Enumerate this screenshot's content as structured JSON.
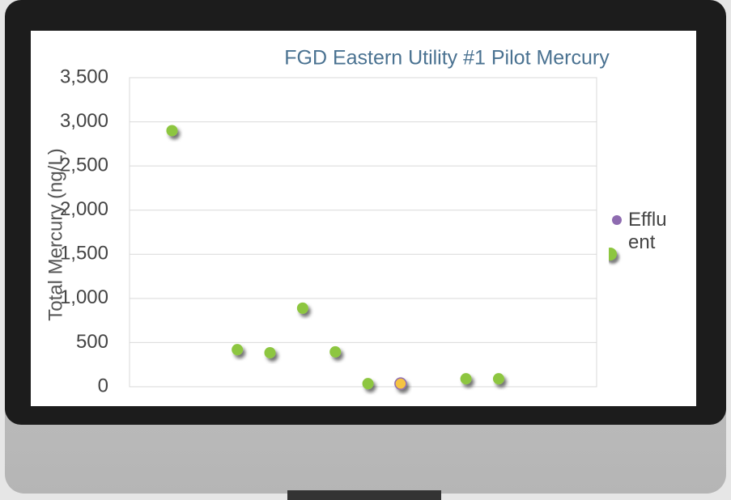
{
  "chart_data": {
    "type": "scatter",
    "title": "FGD Eastern Utility #1 Pilot Mercury",
    "y_label": "Total Mercury (ng/L)",
    "x": [
      1,
      3,
      4,
      5,
      6,
      7,
      8,
      10,
      11
    ],
    "xlim": [
      -0.3,
      14
    ],
    "series": [
      {
        "color": "#8dc63f",
        "values": [
          2900,
          420,
          385,
          890,
          395,
          35,
          null,
          90,
          90
        ]
      },
      {
        "name": "Effluent",
        "color": "#8e6bb0",
        "fill": "#f5c342",
        "values": [
          null,
          null,
          null,
          null,
          null,
          null,
          35,
          null,
          null
        ]
      }
    ],
    "ylim": [
      0,
      3500
    ],
    "yticks": [
      0,
      500,
      {
        "value": 1000,
        "label": "1,000"
      },
      {
        "value": 1500,
        "label": "1,500"
      },
      {
        "value": 2000,
        "label": "2,000"
      },
      {
        "value": 2500,
        "label": "2,500"
      },
      {
        "value": 3000,
        "label": "3,000"
      },
      {
        "value": 3500,
        "label": "3,500"
      }
    ],
    "grid": true
  }
}
